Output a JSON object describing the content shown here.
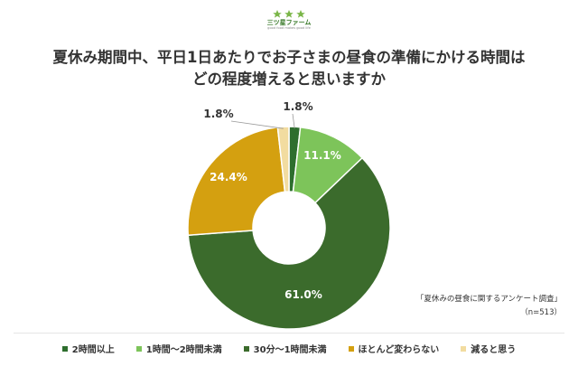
{
  "brand": {
    "name": "三ツ星ファーム",
    "tagline": "good food makes good life"
  },
  "title_lines": [
    "夏休み期間中、平日1日あたりでお子さまの昼食の準備にかける時間は",
    "どの程度増えると思いますか"
  ],
  "source": {
    "line1": "「夏休みの昼食に関するアンケート調査」",
    "line2": "（n=513）"
  },
  "chart_data": {
    "type": "pie",
    "donut": true,
    "title": "夏休み期間中、平日1日あたりでお子さまの昼食の準備にかける時間は どの程度増えると思いますか",
    "legend_position": "bottom",
    "slices": [
      {
        "name": "2時間以上",
        "value": 1.8,
        "label": "1.8%",
        "color": "#2e6e2e"
      },
      {
        "name": "1時間〜2時間未満",
        "value": 11.1,
        "label": "11.1%",
        "color": "#7dc45a"
      },
      {
        "name": "30分〜1時間未満",
        "value": 61.0,
        "label": "61.0%",
        "color": "#3b6b2c"
      },
      {
        "name": "ほとんど変わらない",
        "value": 24.4,
        "label": "24.4%",
        "color": "#d4a010"
      },
      {
        "name": "減ると思う",
        "value": 1.8,
        "label": "1.8%",
        "color": "#f2dca0"
      }
    ]
  }
}
